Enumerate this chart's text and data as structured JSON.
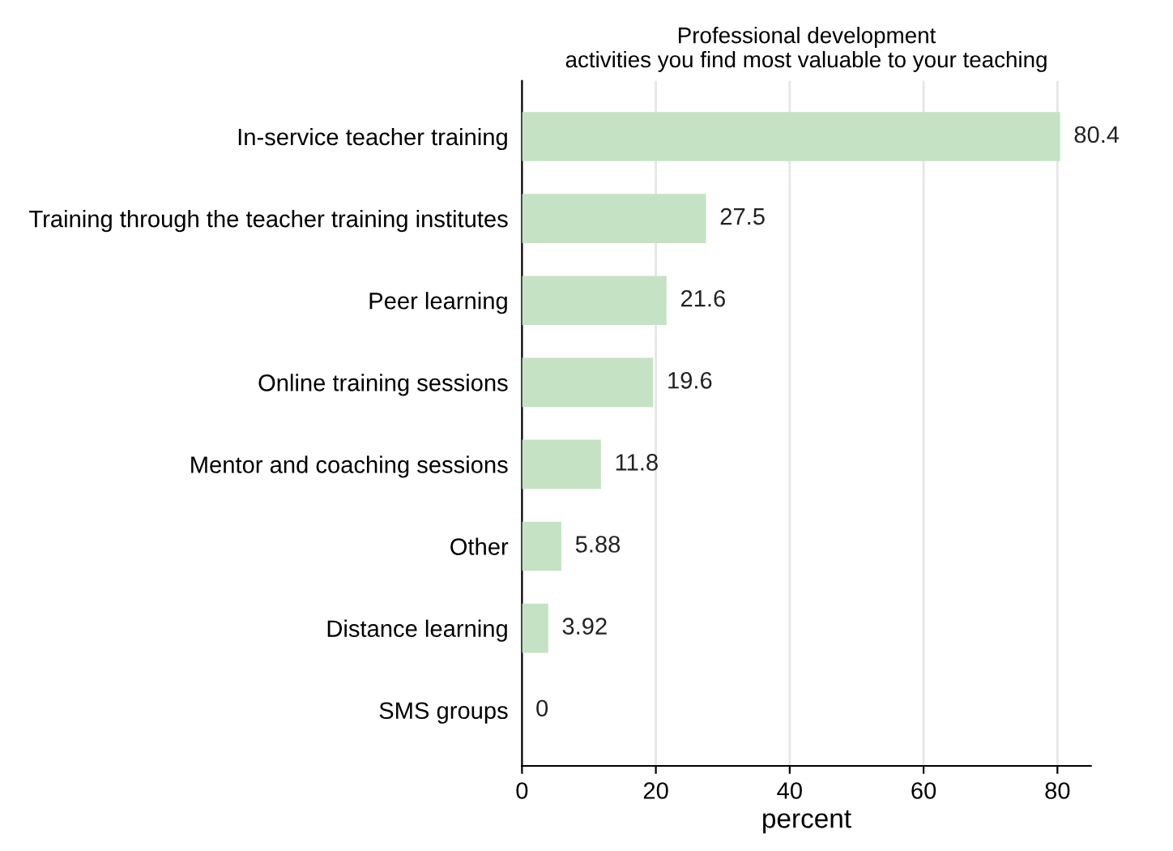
{
  "chart_data": {
    "type": "bar",
    "orientation": "horizontal",
    "title": "Professional development\nactivities you find most valuable to your teaching",
    "xlabel": "percent",
    "categories": [
      "In-service teacher training",
      "Training through the teacher training institutes",
      "Peer learning",
      "Online training sessions",
      "Mentor and coaching sessions",
      "Other",
      "Distance learning",
      "SMS groups"
    ],
    "values": [
      80.4,
      27.5,
      21.6,
      19.6,
      11.8,
      5.88,
      3.92,
      0
    ],
    "value_labels": [
      "80.4",
      "27.5",
      "21.6",
      "19.6",
      "11.8",
      "5.88",
      "3.92",
      "0"
    ],
    "color": "#c5e2c5",
    "xlim": [
      0,
      85
    ],
    "xticks": [
      0,
      20,
      40,
      60,
      80
    ],
    "grid": "x",
    "legend": false
  }
}
